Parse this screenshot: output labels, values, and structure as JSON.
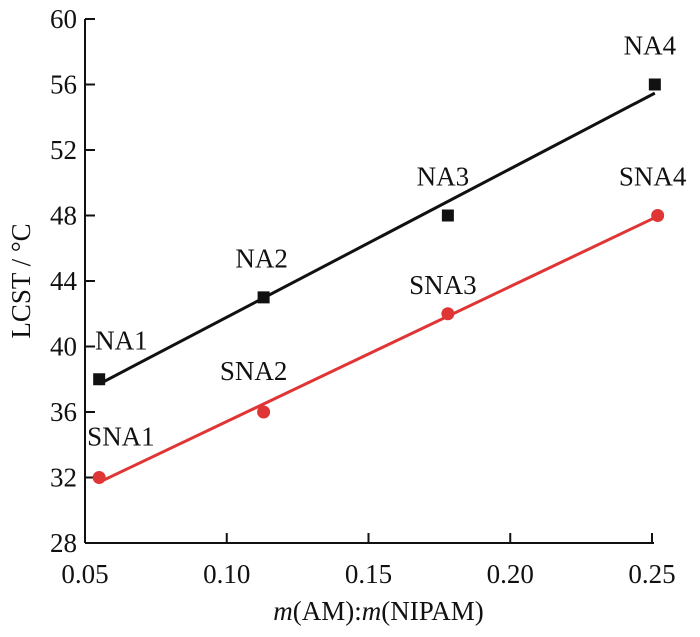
{
  "chart_data": {
    "type": "scatter",
    "title": "",
    "xlabel_parts": [
      {
        "text": "m",
        "italic": true
      },
      {
        "text": "(AM):",
        "italic": false
      },
      {
        "text": "m",
        "italic": true
      },
      {
        "text": "(NIPAM)",
        "italic": false
      }
    ],
    "ylabel": "LCST / °C",
    "xlim": [
      0.05,
      0.25
    ],
    "ylim": [
      28,
      60
    ],
    "xticks": [
      "0.05",
      "0.10",
      "0.15",
      "0.20",
      "0.25"
    ],
    "yticks": [
      "28",
      "32",
      "36",
      "40",
      "44",
      "48",
      "52",
      "56",
      "60"
    ],
    "grid": false,
    "legend": "none",
    "series": [
      {
        "color": "#111111",
        "marker": "square",
        "fit": "linear",
        "x": [
          0.055,
          0.113,
          0.178,
          0.251
        ],
        "y": [
          38,
          43,
          48,
          56
        ],
        "labels": [
          "NA1",
          "NA2",
          "NA3",
          "NA4"
        ]
      },
      {
        "color": "#e03535",
        "marker": "circle",
        "fit": "linear",
        "x": [
          0.055,
          0.113,
          0.178,
          0.252
        ],
        "y": [
          32,
          36,
          42,
          48
        ],
        "labels": [
          "SNA1",
          "SNA2",
          "SNA3",
          "SNA4"
        ]
      }
    ]
  }
}
